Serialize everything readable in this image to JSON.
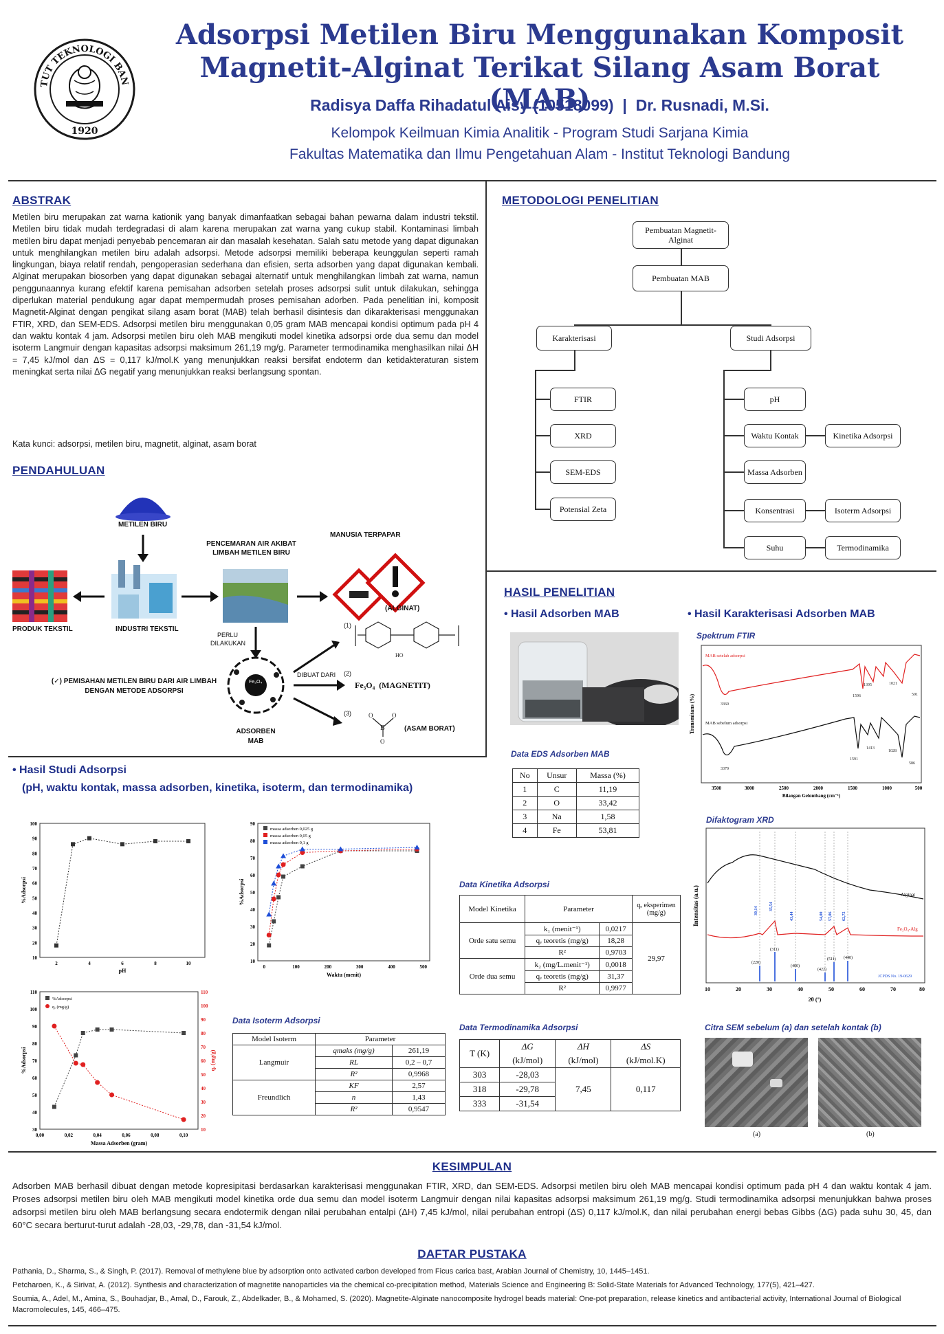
{
  "header": {
    "title_line1": "Adsorpsi Metilen Biru Menggunakan Komposit",
    "title_line2": "Magnetit-Alginat Terikat Silang Asam Borat (MAB)",
    "authors": "Radisya Daffa Rihadatul Aisy (10518099)  |  Dr. Rusnadi, M.Si.",
    "affil1": "Kelompok Keilmuan Kimia Analitik - Program Studi Sarjana Kimia",
    "affil2": "Fakultas Matematika dan Ilmu Pengetahuan Alam - Institut Teknologi Bandung",
    "logo_text": "INSTITUT TEKNOLOGI BANDUNG",
    "logo_year": "1920"
  },
  "abstrak": {
    "heading": "ABSTRAK",
    "body": "Metilen biru merupakan zat warna kationik yang banyak dimanfaatkan sebagai bahan pewarna dalam industri tekstil. Metilen biru tidak mudah terdegradasi di alam karena merupakan zat warna yang cukup stabil. Kontaminasi limbah metilen biru dapat menjadi penyebab pencemaran air dan masalah kesehatan. Salah satu metode yang dapat digunakan untuk menghilangkan metilen biru adalah adsorpsi. Metode adsorpsi memiliki beberapa keunggulan seperti ramah lingkungan, biaya relatif rendah, pengoperasian sederhana dan efisien, serta adsorben yang dapat digunakan kembali. Alginat merupakan biosorben yang dapat digunakan sebagai alternatif untuk menghilangkan limbah zat warna, namun penggunaannya kurang efektif karena pemisahan adsorben setelah proses adsorpsi sulit untuk dilakukan, sehingga diperlukan material pendukung agar dapat mempermudah proses pemisahan adorben. Pada penelitian ini, komposit Magnetit-Alginat dengan pengikat silang asam borat (MAB) telah berhasil disintesis dan dikarakterisasi menggunakan FTIR, XRD, dan SEM-EDS. Adsorpsi metilen biru menggunakan 0,05 gram MAB mencapai kondisi optimum pada pH 4 dan waktu kontak 4 jam. Adsorpsi metilen biru oleh MAB mengikuti model kinetika adsorpsi orde dua semu dan model isoterm Langmuir dengan kapasitas adsorpsi maksimum 261,19 mg/g. Parameter termodinamika menghasilkan nilai ΔH = 7,45 kJ/mol dan ΔS = 0,117 kJ/mol.K yang menunjukkan reaksi bersifat endoterm dan ketidakteraturan sistem meningkat serta nilai ΔG negatif yang menunjukkan reaksi berlangsung spontan.",
    "keywords": "Kata kunci: adsorpsi, metilen biru, magnetit, alginat, asam borat"
  },
  "pendahuluan": {
    "heading": "PENDAHULUAN",
    "labels": {
      "metilen": "METILEN BIRU",
      "produk": "PRODUK TEKSTIL",
      "industri": "INDUSTRI TEKSTIL",
      "pencemaran": "PENCEMARAN AIR AKIBAT LIMBAH METILEN BIRU",
      "manusia": "MANUSIA TERPAPAR",
      "perlu": "PERLU DILAKUKAN",
      "pemisahan": "(✓) PEMISAHAN METILEN BIRU DARI AIR LIMBAH DENGAN METODE ADSORPSI",
      "adsorben": "ADSORBEN MAB",
      "dibuat": "DIBUAT DARI",
      "alginat": "(ALGINAT)",
      "magnetit": "Fe₃O₄  (MAGNETIT)",
      "asam_borat": "(ASAM BORAT)",
      "n1": "(1)",
      "n2": "(2)",
      "n3": "(3)",
      "center": "Fe₃O₄"
    }
  },
  "metodologi": {
    "heading": "METODOLOGI PENELITIAN",
    "boxes": {
      "b1": "Pembuatan Magnetit-Alginat",
      "b2": "Pembuatan MAB",
      "b3": "Karakterisasi",
      "b4": "Studi Adsorpsi",
      "b5": "FTIR",
      "b6": "XRD",
      "b7": "SEM-EDS",
      "b8": "Potensial Zeta",
      "b9": "pH",
      "b10": "Waktu Kontak",
      "b11": "Kinetika Adsorpsi",
      "b12": "Massa Adsorben",
      "b13": "Konsentrasi",
      "b14": "Isoterm Adsorpsi",
      "b15": "Suhu",
      "b16": "Termodinamika"
    }
  },
  "hasil": {
    "heading": "HASIL PENELITIAN",
    "adsorben_heading": "• Hasil Adsorben MAB",
    "karakterisasi_heading": "• Hasil Karakterisasi Adsorben MAB",
    "studi_heading": "• Hasil Studi Adsorpsi",
    "studi_sub": "(pH, waktu kontak, massa adsorben, kinetika, isoterm, dan termodinamika)",
    "ftir_caption": "Spektrum FTIR",
    "xrd_caption": "Difaktogram XRD",
    "sem_caption": "Citra SEM sebelum (a) dan setelah kontak (b)",
    "sem_a": "(a)",
    "sem_b": "(b)",
    "eds_caption": "Data EDS Adsorben MAB",
    "kinetika_caption": "Data Kinetika Adsorpsi",
    "isoterm_caption": "Data Isoterm Adsorpsi",
    "termo_caption": "Data Termodinamika Adsorpsi"
  },
  "eds_table": {
    "headers": [
      "No",
      "Unsur",
      "Massa (%)"
    ],
    "rows": [
      [
        "1",
        "C",
        "11,19"
      ],
      [
        "2",
        "O",
        "33,42"
      ],
      [
        "3",
        "Na",
        "1,58"
      ],
      [
        "4",
        "Fe",
        "53,81"
      ]
    ]
  },
  "kinetika_table": {
    "h1": "Model Kinetika",
    "h2": "Parameter",
    "h3": "qₑ eksperimen (mg/g)",
    "m1": "Orde satu semu",
    "m2": "Orde dua semu",
    "r1": [
      "k₁ (menit⁻¹)",
      "0,0217"
    ],
    "r2": [
      "qₑ teoretis (mg/g)",
      "18,28"
    ],
    "r3": [
      "R²",
      "0,9703"
    ],
    "r4": [
      "k₂ (mg/L.menit⁻¹)",
      "0,0018"
    ],
    "r5": [
      "qₑ teoretis (mg/g)",
      "31,37"
    ],
    "r6": [
      "R²",
      "0,9977"
    ],
    "qe": "29,97"
  },
  "isoterm_table": {
    "h1": "Model Isoterm",
    "h2": "Parameter",
    "m1": "Langmuir",
    "m2": "Freundlich",
    "r1": [
      "qmaks (mg/g)",
      "261,19"
    ],
    "r2": [
      "RL",
      "0,2 – 0,7"
    ],
    "r3": [
      "R²",
      "0,9968"
    ],
    "r4": [
      "KF",
      "2,57"
    ],
    "r5": [
      "n",
      "1,43"
    ],
    "r6": [
      "R²",
      "0,9547"
    ]
  },
  "termo_table": {
    "h1": "T (K)",
    "h2": "ΔG",
    "h2b": "(kJ/mol)",
    "h3": "ΔH",
    "h3b": "(kJ/mol)",
    "h4": "ΔS",
    "h4b": "(kJ/mol.K)",
    "rows": [
      [
        "303",
        "-28,03"
      ],
      [
        "318",
        "-29,78"
      ],
      [
        "333",
        "-31,54"
      ]
    ],
    "dH": "7,45",
    "dS": "0,117"
  },
  "charts": {
    "ph": {
      "xlabel": "pH",
      "ylabel": "%Adsorpsi",
      "xticks": [
        "2",
        "4",
        "6",
        "8",
        "10"
      ],
      "yticks": [
        "10",
        "20",
        "30",
        "40",
        "50",
        "60",
        "70",
        "80",
        "90",
        "100"
      ],
      "x": [
        2,
        3,
        4,
        6,
        8,
        10
      ],
      "y": [
        18,
        86,
        90,
        86,
        88,
        88
      ],
      "xlim": [
        1,
        11
      ],
      "ylim": [
        10,
        100
      ]
    },
    "waktu": {
      "xlabel": "Waktu (menit)",
      "ylabel": "%Adsorpsi",
      "legend": [
        "massa adsorben 0,025 g",
        "massa adsorben 0,05 g",
        "massa adsorben 0,1 g"
      ],
      "xticks": [
        "0",
        "100",
        "200",
        "300",
        "400",
        "500"
      ],
      "yticks": [
        "10",
        "20",
        "30",
        "40",
        "50",
        "60",
        "70",
        "80",
        "90"
      ],
      "x": [
        15,
        30,
        45,
        60,
        120,
        240,
        480
      ],
      "s1": [
        19,
        33,
        47,
        59,
        65,
        74,
        74
      ],
      "s2": [
        25,
        46,
        60,
        66,
        73,
        74,
        75
      ],
      "s3": [
        37,
        55,
        65,
        71,
        75,
        75,
        76
      ],
      "xlim": [
        -20,
        520
      ],
      "ylim": [
        10,
        90
      ]
    },
    "massa": {
      "xlabel": "Massa Adsorben (gram)",
      "ylabel": "%Adsorpsi",
      "y2label": "qₑ (mg/g)",
      "legend": [
        "%Adsorpsi",
        "qₑ (mg/g)"
      ],
      "xticks": [
        "0,00",
        "0,02",
        "0,04",
        "0,06",
        "0,08",
        "0,10"
      ],
      "yticks": [
        "30",
        "40",
        "50",
        "60",
        "70",
        "80",
        "90",
        "100",
        "110"
      ],
      "y2ticks": [
        "10",
        "20",
        "30",
        "40",
        "50",
        "60",
        "70",
        "80",
        "90",
        "100",
        "110"
      ],
      "x": [
        0.01,
        0.025,
        0.03,
        0.04,
        0.05,
        0.1
      ],
      "adsorpsi": [
        43,
        73,
        86,
        88,
        88,
        86
      ],
      "qe": [
        85,
        58,
        57,
        44,
        35,
        17
      ],
      "xlim": [
        0,
        0.11
      ],
      "ylim": [
        30,
        110
      ],
      "y2lim": [
        10,
        110
      ]
    },
    "ftir": {
      "xlabel": "Bilangan Gelombang (cm⁻¹)",
      "ylabel": "Transmitans (%)",
      "series1": "MAB setelah adsorpsi",
      "series2": "MAB sebelum adsorpsi",
      "xticks": [
        "3500",
        "3000",
        "2500",
        "2000",
        "1500",
        "1000",
        "500"
      ],
      "peaks_red": [
        "3360",
        "1596",
        "1395",
        "1021",
        "591"
      ],
      "peaks_black": [
        "3379",
        "1591",
        "1413",
        "1028",
        "586"
      ]
    },
    "xrd": {
      "xlabel": "2θ (°)",
      "ylabel": "Intensitas (a.u.)",
      "series1": "Alginat",
      "series2": "Fe₃O₄-Alg",
      "ref": "JCPDS No. 19-0629",
      "xticks": [
        "10",
        "20",
        "30",
        "40",
        "50",
        "60",
        "70",
        "80"
      ],
      "peaks": [
        "30,14",
        "35,54",
        "43,44",
        "54,00",
        "57,06",
        "62,72"
      ],
      "hkl": [
        "(220)",
        "(311)",
        "(400)",
        "(422)",
        "(511)",
        "(440)"
      ]
    }
  },
  "kesimpulan": {
    "heading": "KESIMPULAN",
    "body": "Adsorben MAB berhasil dibuat dengan metode kopresipitasi berdasarkan karakterisasi menggunakan FTIR, XRD, dan SEM-EDS. Adsorpsi metilen biru oleh MAB mencapai kondisi optimum pada pH 4 dan waktu kontak 4 jam. Proses adsorpsi metilen biru oleh MAB mengikuti model kinetika orde dua semu dan model isoterm Langmuir dengan nilai kapasitas adsorpsi maksimum 261,19 mg/g. Studi termodinamika adsorpsi menunjukkan bahwa proses adsorpsi metilen biru oleh MAB berlangsung secara endotermik dengan nilai perubahan entalpi (ΔH) 7,45 kJ/mol, nilai perubahan entropi (ΔS) 0,117 kJ/mol.K, dan nilai perubahan energi bebas Gibbs (ΔG) pada suhu 30, 45, dan 60°C secara berturut-turut adalah -28,03, -29,78, dan -31,54 kJ/mol."
  },
  "pustaka": {
    "heading": "DAFTAR PUSTAKA",
    "refs": [
      "Pathania, D., Sharma, S., & Singh, P. (2017). Removal of methylene blue by adsorption onto activated carbon developed from Ficus carica bast, Arabian Journal of Chemistry, 10, 1445–1451.",
      "Petcharoen, K., & Sirivat, A. (2012). Synthesis and characterization of magnetite nanoparticles via the chemical co-precipitation method, Materials Science and Engineering B: Solid-State Materials for Advanced Technology, 177(5), 421–427.",
      "Soumia, A., Adel, M., Amina, S., Bouhadjar, B., Amal, D., Farouk, Z., Abdelkader, B., & Mohamed, S. (2020). Magnetite-Alginate nanocomposite hydrogel beads material: One-pot preparation, release kinetics and antibacterial activity, International Journal of Biological Macromolecules, 145, 466–475."
    ]
  },
  "colors": {
    "navy": "#2b3a8f",
    "red": "#e02020",
    "blue": "#1e4fd8",
    "dark": "#333333"
  }
}
